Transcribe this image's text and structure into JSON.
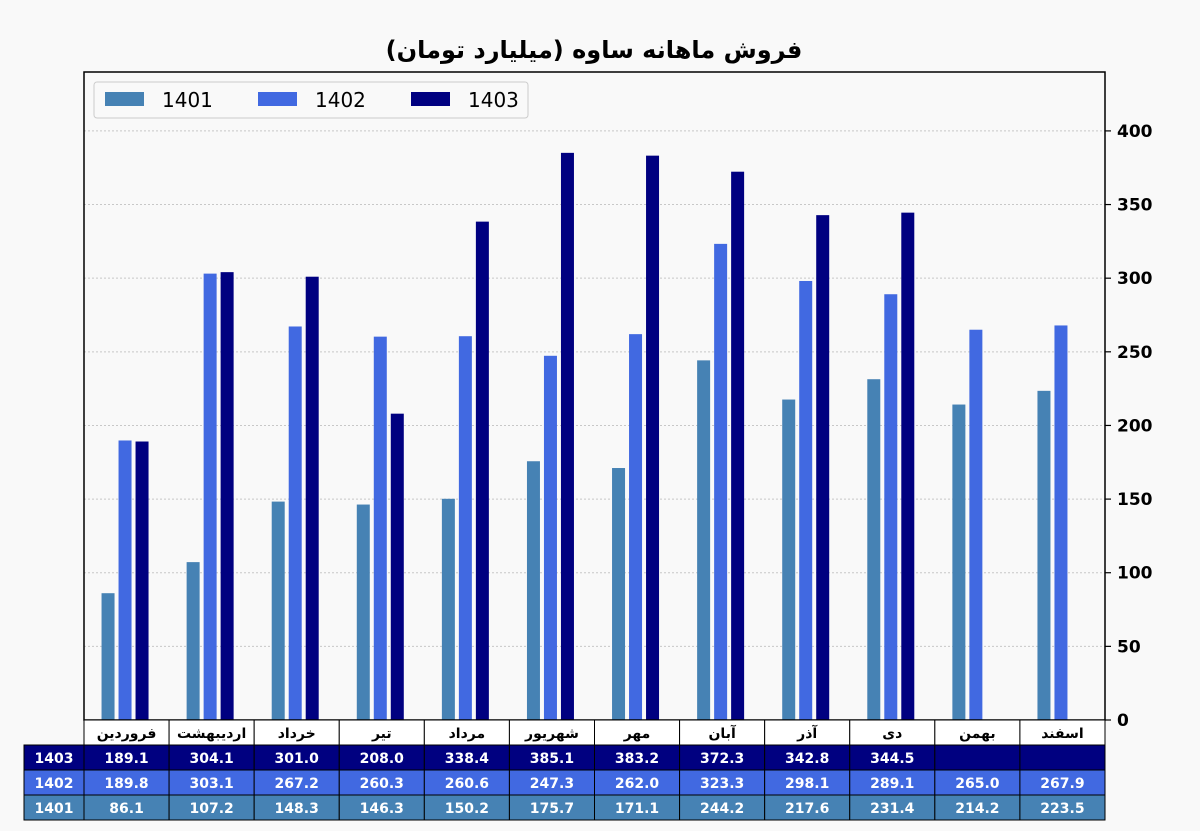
{
  "chart_data": {
    "type": "bar",
    "title": "فروش ماهانه ساوه (میلیارد تومان)",
    "xlabel": "",
    "ylabel": "",
    "ylim": [
      0,
      440
    ],
    "yticks": [
      0,
      50,
      100,
      150,
      200,
      250,
      300,
      350,
      400
    ],
    "y_axis_side": "right",
    "grid": "horizontal dotted",
    "legend_position": "top-left",
    "categories": [
      "فروردین",
      "اردیبهشت",
      "خرداد",
      "تیر",
      "مرداد",
      "شهریور",
      "مهر",
      "آبان",
      "آذر",
      "دی",
      "بهمن",
      "اسفند"
    ],
    "series": [
      {
        "name": "1401",
        "color": "#4682b4",
        "values": [
          86.1,
          107.2,
          148.3,
          146.3,
          150.2,
          175.7,
          171.1,
          244.2,
          217.6,
          231.4,
          214.2,
          223.5
        ]
      },
      {
        "name": "1402",
        "color": "#4169e1",
        "values": [
          189.8,
          303.1,
          267.2,
          260.3,
          260.6,
          247.3,
          262.0,
          323.3,
          298.1,
          289.1,
          265.0,
          267.9
        ]
      },
      {
        "name": "1403",
        "color": "#000080",
        "values": [
          189.1,
          304.1,
          301.0,
          208.0,
          338.4,
          385.1,
          383.2,
          372.3,
          342.8,
          344.5,
          null,
          null
        ]
      }
    ],
    "table": {
      "row_order": [
        "1403",
        "1402",
        "1401"
      ],
      "rows": {
        "1403": [
          "189.1",
          "304.1",
          "301.0",
          "208.0",
          "338.4",
          "385.1",
          "383.2",
          "372.3",
          "342.8",
          "344.5",
          "",
          ""
        ],
        "1402": [
          "189.8",
          "303.1",
          "267.2",
          "260.3",
          "260.6",
          "247.3",
          "262.0",
          "323.3",
          "298.1",
          "289.1",
          "265.0",
          "267.9"
        ],
        "1401": [
          "86.1",
          "107.2",
          "148.3",
          "146.3",
          "150.2",
          "175.7",
          "171.1",
          "244.2",
          "217.6",
          "231.4",
          "214.2",
          "223.5"
        ]
      }
    }
  }
}
